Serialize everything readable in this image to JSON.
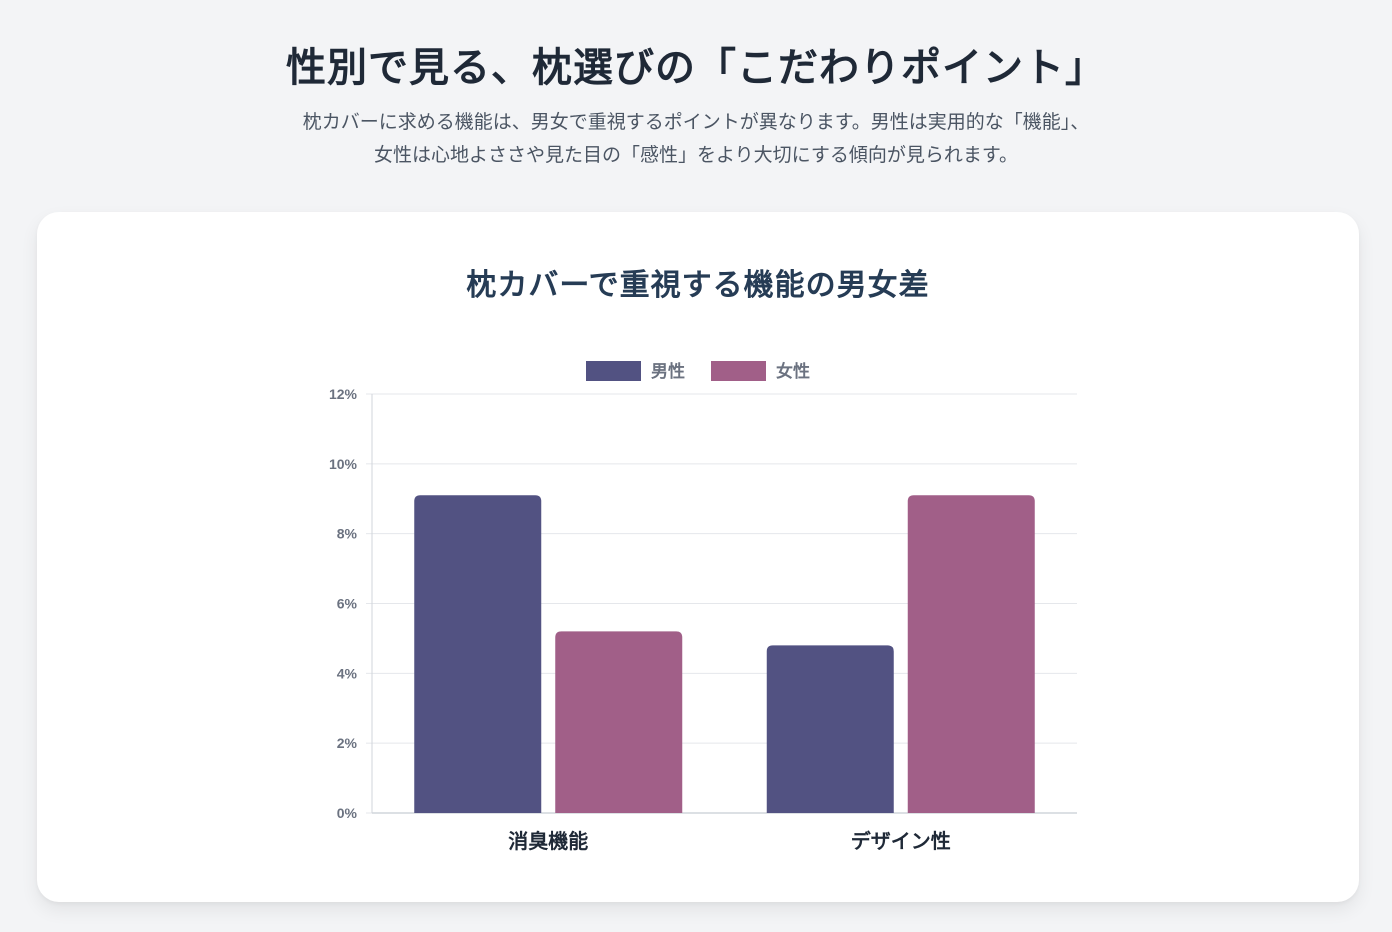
{
  "header": {
    "title": "性別で見る、枕選びの「こだわりポイント」",
    "subtitle_line1": "枕カバーに求める機能は、男女で重視するポイントが異なります。男性は実用的な「機能」、",
    "subtitle_line2": "女性は心地よささや見た目の「感性」をより大切にする傾向が見られます。"
  },
  "colors": {
    "male": "#525282",
    "female": "#a15f88",
    "grid": "#e5e7eb"
  },
  "chart_data": {
    "type": "bar",
    "title": "枕カバーで重視する機能の男女差",
    "categories": [
      "消臭機能",
      "デザイン性"
    ],
    "series": [
      {
        "name": "男性",
        "values": [
          9.1,
          4.8
        ]
      },
      {
        "name": "女性",
        "values": [
          5.2,
          9.1
        ]
      }
    ],
    "ylim": [
      0,
      12
    ],
    "yticks": [
      "0%",
      "2%",
      "4%",
      "6%",
      "8%",
      "10%",
      "12%"
    ],
    "y_tick_values": [
      0,
      2,
      4,
      6,
      8,
      10,
      12
    ],
    "legend_position": "top",
    "grid": true
  }
}
